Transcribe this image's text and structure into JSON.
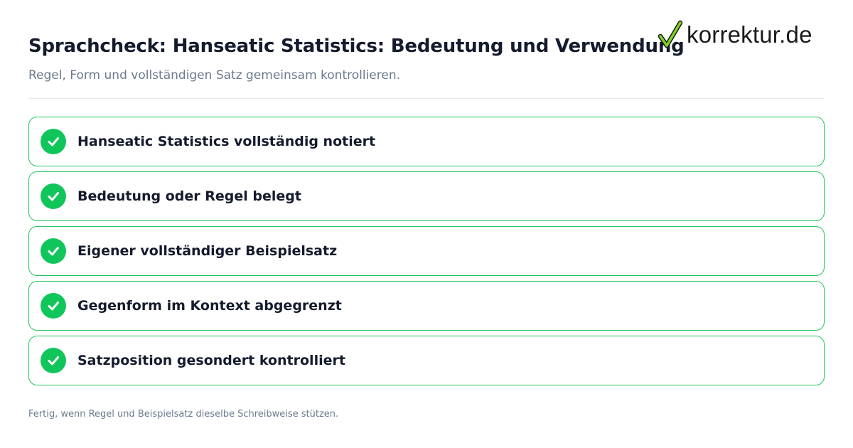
{
  "header": {
    "title": "Sprachcheck: Hanseatic Statistics: Bedeutung und Verwendung",
    "subtitle": "Regel, Form und vollständigen Satz gemeinsam kontrollieren."
  },
  "logo": {
    "text": "korrektur.de",
    "icon": "checkmark-icon",
    "check_color": "#7ed321"
  },
  "checklist": {
    "items": [
      {
        "label": "Hanseatic Statistics vollständig notiert",
        "checked": true
      },
      {
        "label": "Bedeutung oder Regel belegt",
        "checked": true
      },
      {
        "label": "Eigener vollständiger Beispielsatz",
        "checked": true
      },
      {
        "label": "Gegenform im Kontext abgegrenzt",
        "checked": true
      },
      {
        "label": "Satzposition gesondert kontrolliert",
        "checked": true
      }
    ]
  },
  "footer": {
    "note": "Fertig, wenn Regel und Beispielsatz dieselbe Schreibweise stützen."
  },
  "colors": {
    "accent_green": "#10c65a",
    "border_green": "#22c55e",
    "title_text": "#141b2d",
    "muted_text": "#6b7a90"
  }
}
